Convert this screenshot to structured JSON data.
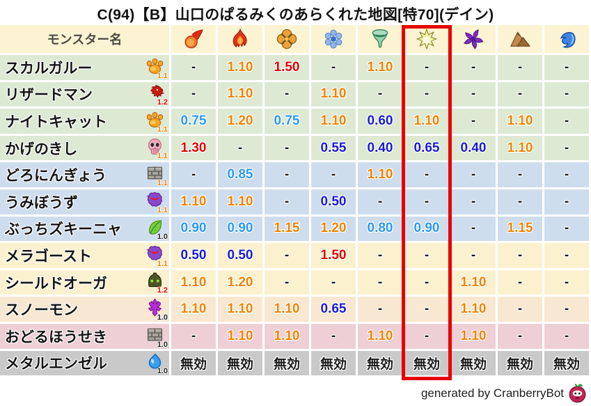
{
  "chart_data": {
    "type": "table",
    "title": "C(94)【B】山口のぱるみくのあらくれた地図[特70](デイン)",
    "name_column_label": "モンスター名",
    "element_columns": [
      "fireball-icon",
      "flame-icon",
      "explosion-icon",
      "snowflake-icon",
      "tornado-icon",
      "spark-icon",
      "pinwheel-icon",
      "mountain-icon",
      "wave-icon"
    ],
    "highlighted_column_index": 5,
    "rows": [
      {
        "name": "スカルガルー",
        "family_icon": "paw-icon",
        "badge": "1.1",
        "row_color": "green",
        "values": [
          "-",
          "1.10",
          "1.50",
          "-",
          "1.10",
          "-",
          "-",
          "-",
          "-"
        ]
      },
      {
        "name": "リザードマン",
        "family_icon": "dragon-icon",
        "badge": "1.2",
        "row_color": "green",
        "values": [
          "-",
          "1.10",
          "-",
          "1.10",
          "-",
          "-",
          "-",
          "-",
          "-"
        ]
      },
      {
        "name": "ナイトキャット",
        "family_icon": "paw-icon",
        "badge": "1.1",
        "row_color": "green",
        "values": [
          "0.75",
          "1.20",
          "0.75",
          "1.10",
          "0.60",
          "1.10",
          "-",
          "1.10",
          "-"
        ]
      },
      {
        "name": "かげのきし",
        "family_icon": "skull-icon",
        "badge": "1.1",
        "row_color": "green",
        "values": [
          "1.30",
          "-",
          "-",
          "0.55",
          "0.40",
          "0.65",
          "0.40",
          "1.10",
          "-"
        ]
      },
      {
        "name": "どろにんぎょう",
        "family_icon": "brick-icon",
        "badge": "1.1",
        "row_color": "blue",
        "values": [
          "-",
          "0.85",
          "-",
          "-",
          "1.10",
          "-",
          "-",
          "-",
          "-"
        ]
      },
      {
        "name": "うみぼうず",
        "family_icon": "ghost-icon",
        "badge": "1.1",
        "row_color": "blue",
        "values": [
          "1.10",
          "1.10",
          "-",
          "0.50",
          "-",
          "-",
          "-",
          "-",
          "-"
        ]
      },
      {
        "name": "ぶっちズキーニャ",
        "family_icon": "leaf-icon",
        "badge": "1.0",
        "row_color": "blue",
        "values": [
          "0.90",
          "0.90",
          "1.15",
          "1.20",
          "0.80",
          "0.90",
          "-",
          "1.15",
          "-"
        ]
      },
      {
        "name": "メラゴースト",
        "family_icon": "ghost-icon",
        "badge": "1.1",
        "row_color": "yellow",
        "values": [
          "0.50",
          "0.50",
          "-",
          "1.50",
          "-",
          "-",
          "-",
          "-",
          "-"
        ]
      },
      {
        "name": "シールドオーガ",
        "family_icon": "helmet-icon",
        "badge": "1.2",
        "row_color": "yellow",
        "values": [
          "1.10",
          "1.20",
          "-",
          "-",
          "-",
          "-",
          "1.10",
          "-",
          "-"
        ]
      },
      {
        "name": "スノーモン",
        "family_icon": "trident-icon",
        "badge": "1.0",
        "row_color": "peach",
        "values": [
          "1.10",
          "1.10",
          "1.10",
          "0.65",
          "-",
          "-",
          "1.10",
          "-",
          "-"
        ]
      },
      {
        "name": "おどるほうせき",
        "family_icon": "brick-icon",
        "badge": "1.0",
        "row_color": "pink",
        "values": [
          "-",
          "1.10",
          "1.10",
          "-",
          "1.10",
          "-",
          "1.10",
          "-",
          "-"
        ]
      },
      {
        "name": "メタルエンゼル",
        "family_icon": "slime-icon",
        "badge": "1.0",
        "row_color": "gray",
        "values": [
          "無効",
          "無効",
          "無効",
          "無効",
          "無効",
          "無効",
          "無効",
          "無効",
          "無効"
        ]
      }
    ]
  },
  "footer": {
    "credit": "generated by CranberryBot",
    "mascot_icon": "cranberry-icon"
  },
  "colors": {
    "title_text": "#111111",
    "header_bg": "#fcf3d3",
    "row_green": "#dde9d3",
    "row_blue": "#cdddee",
    "row_yellow": "#fbf1cf",
    "row_peach": "#f8e7d1",
    "row_pink": "#eecfd5",
    "row_gray": "#c9c9c9",
    "weak_strong": "#e10000",
    "weak": "#f08300",
    "resist_light": "#2b99f2",
    "resist_strong": "#1a1ad2",
    "neutral": "#1a1a1a",
    "highlight_red": "#e60000"
  }
}
